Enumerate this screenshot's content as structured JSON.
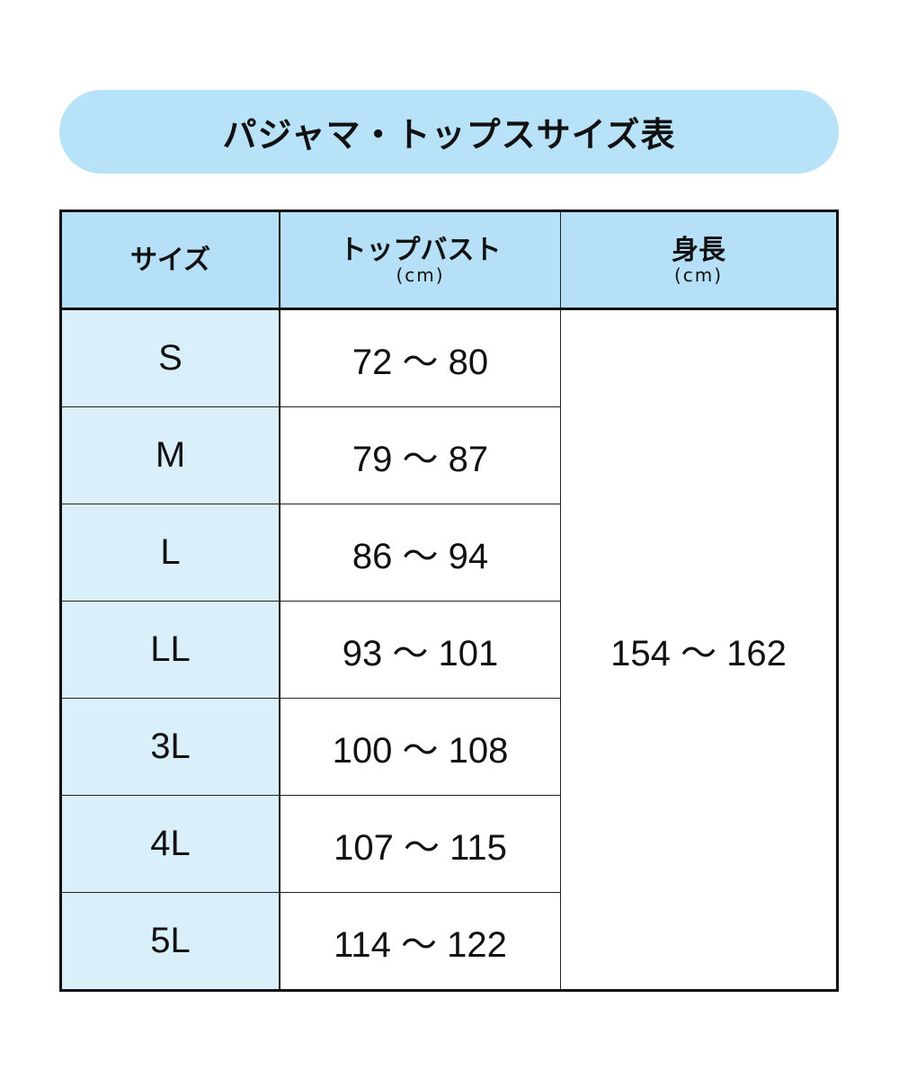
{
  "title": "パジャマ・トップスサイズ表",
  "headers": [
    {
      "label": "サイズ",
      "unit": ""
    },
    {
      "label": "トップバスト",
      "unit": "(cm)"
    },
    {
      "label": "身長",
      "unit": "(cm)"
    }
  ],
  "rows": [
    {
      "size": "S",
      "bust": "72 〜 80"
    },
    {
      "size": "M",
      "bust": "79 〜 87"
    },
    {
      "size": "L",
      "bust": "86 〜 94"
    },
    {
      "size": "LL",
      "bust": "93 〜 101"
    },
    {
      "size": "3L",
      "bust": "100 〜 108"
    },
    {
      "size": "4L",
      "bust": "107 〜 115"
    },
    {
      "size": "5L",
      "bust": "114 〜 122"
    }
  ],
  "height": "154 〜 162",
  "colors": {
    "title_bg": "#b8e2f8",
    "header_bg": "#b5e0f7",
    "size_col_bg": "#d9f0fb"
  }
}
